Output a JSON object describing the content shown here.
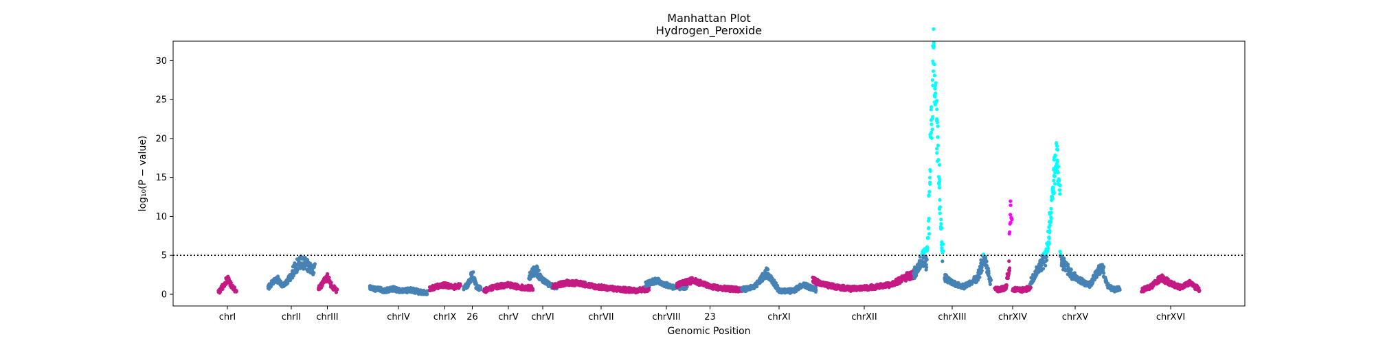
{
  "chart_data": {
    "type": "scatter",
    "title": "Manhattan Plot",
    "subtitle": "Hydrogen_Peroxide",
    "xlabel": "Genomic Position",
    "ylabel": "log₁₀(P − value)",
    "ylim": [
      -1.5,
      32.5
    ],
    "yticks": [
      0,
      5,
      10,
      15,
      20,
      25,
      30
    ],
    "threshold": 5,
    "grid": false,
    "colors": {
      "odd": "#c41a84",
      "even": "#4682b4",
      "high_even": "#00ffff",
      "high_odd": "#ff00ff",
      "threshold_line": "#000000"
    },
    "chromosomes": [
      {
        "label": "chrI",
        "color": "odd",
        "segments": [
          [
            0.2,
            1.0,
            2.0,
            1.0,
            0.4
          ]
        ]
      },
      {
        "label": "chrII",
        "color": "even",
        "segments": [
          [
            0.8,
            1.6,
            2.0,
            1.2,
            1.5,
            2.5,
            3.5,
            4.2,
            3.8,
            3.4,
            3.2
          ]
        ]
      },
      {
        "label": "chrIII",
        "color": "odd",
        "segments": [
          [
            0.6,
            1.4,
            2.2,
            1.0,
            0.5
          ]
        ]
      },
      {
        "label": "chrIV",
        "color": "even",
        "segments": [
          [
            0.8,
            0.6,
            0.5,
            0.7,
            0.4,
            0.6,
            0.3,
            0.2
          ]
        ]
      },
      {
        "label": "chrIX",
        "color": "odd",
        "segments": [
          [
            0.7,
            1.0,
            1.2,
            0.9,
            1.1
          ]
        ]
      },
      {
        "label": "26",
        "color": "even",
        "segments": [
          [
            0.8,
            1.3,
            2.6,
            1.0,
            0.7
          ]
        ]
      },
      {
        "label": "chrV",
        "color": "odd",
        "segments": [
          [
            0.5,
            1.0,
            1.2,
            0.9,
            0.8
          ]
        ]
      },
      {
        "label": "chrVI",
        "color": "even",
        "segments": [
          [
            2.2,
            3.2,
            1.8,
            1.2,
            0.8
          ]
        ]
      },
      {
        "label": "chrVII",
        "color": "odd",
        "segments": [
          [
            1.0,
            1.5,
            1.4,
            1.0,
            0.8,
            0.6,
            0.5,
            0.7
          ]
        ]
      },
      {
        "label": "chrVIII",
        "color": "even",
        "segments": [
          [
            1.3,
            1.8,
            1.2,
            0.8,
            1.0
          ]
        ]
      },
      {
        "label": "23",
        "color": "odd",
        "segments": [
          [
            1.2,
            1.8,
            1.0,
            0.7,
            0.6
          ]
        ]
      },
      {
        "label": "chrXI",
        "color": "even",
        "segments": [
          [
            0.6,
            0.9,
            2.8,
            0.5,
            0.4,
            1.2,
            0.6
          ]
        ]
      },
      {
        "label": "chrXII",
        "color": "odd",
        "segments": [
          [
            1.8,
            1.2,
            0.9,
            0.7,
            0.8,
            1.0,
            1.2,
            2.0,
            2.8
          ]
        ]
      },
      {
        "label": "chrXIII",
        "color": "even",
        "segments": [
          [
            2.5,
            4.0,
            5.2
          ],
          [
            3.0,
            8.0,
            20.0,
            30.5,
            25.0,
            18.0,
            10.0,
            4.5
          ],
          [
            2.2,
            1.5,
            1.2,
            1.0,
            1.6,
            2.0,
            4.8,
            1.5
          ]
        ]
      },
      {
        "label": "chrXIV",
        "color": "odd",
        "segments": [
          [
            0.8,
            0.6,
            0.7,
            0.9,
            4.0
          ],
          [
            7.0,
            11.5,
            9.0
          ],
          [
            0.7,
            0.5,
            0.6,
            0.8
          ]
        ]
      },
      {
        "label": "chrXV",
        "color": "even",
        "segments": [
          [
            1.5,
            3.5,
            4.8
          ],
          [
            5.5,
            8.0,
            12.0,
            16.0,
            17.5,
            13.0
          ],
          [
            4.5,
            3.5,
            2.5,
            2.0,
            1.5,
            1.2,
            2.5,
            3.5,
            1.0,
            0.6,
            0.8
          ]
        ]
      },
      {
        "label": "chrXVI",
        "color": "odd",
        "segments": [
          [
            0.5,
            1.0,
            2.2,
            1.4,
            0.9,
            1.5,
            0.6
          ]
        ]
      }
    ]
  }
}
